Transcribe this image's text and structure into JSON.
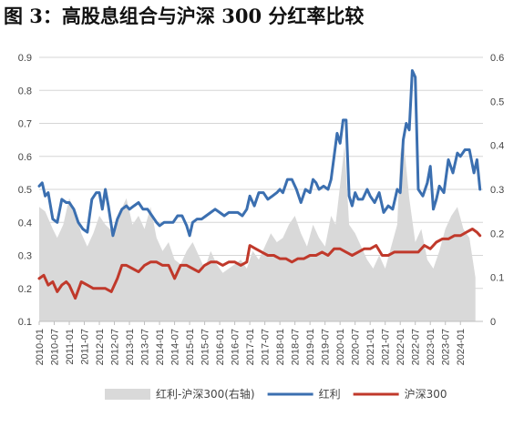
{
  "figure": {
    "title": "图 3：高股息组合与沪深 300 分红率比较"
  },
  "chart_data": {
    "type": "line",
    "title": "图 3：高股息组合与沪深 300 分红率比较",
    "x_labels": [
      "2010-01",
      "2010-07",
      "2011-01",
      "2011-07",
      "2012-01",
      "2012-07",
      "2013-01",
      "2013-07",
      "2014-01",
      "2014-07",
      "2015-01",
      "2015-07",
      "2016-01",
      "2016-07",
      "2017-01",
      "2017-07",
      "2018-01",
      "2018-07",
      "2019-01",
      "2019-07",
      "2020-01",
      "2020-07",
      "2021-01",
      "2021-07",
      "2022-01",
      "2022-07",
      "2023-01",
      "2023-07",
      "2024-01"
    ],
    "y_left": {
      "min": 0.1,
      "max": 0.9,
      "ticks": [
        "0.1",
        "0.2",
        "0.3",
        "0.4",
        "0.5",
        "0.6",
        "0.7",
        "0.8",
        "0.9"
      ]
    },
    "y_right": {
      "min": 0,
      "max": 0.6,
      "ticks": [
        "0",
        "0.1",
        "0.2",
        "0.3",
        "0.4",
        "0.5",
        "0.6"
      ]
    },
    "grid": true,
    "legend_position": "bottom",
    "series": [
      {
        "name": "红利-沪深300(右轴)",
        "kind": "area",
        "axis": "right",
        "color": "#d9d9d9",
        "x": [
          2010.0,
          2010.2,
          2010.45,
          2010.6,
          2010.8,
          2011.0,
          2011.2,
          2011.4,
          2011.6,
          2011.8,
          2012.0,
          2012.2,
          2012.5,
          2012.7,
          2012.9,
          2013.1,
          2013.3,
          2013.5,
          2013.7,
          2013.9,
          2014.1,
          2014.3,
          2014.5,
          2014.7,
          2014.9,
          2015.1,
          2015.3,
          2015.5,
          2015.7,
          2015.9,
          2016.1,
          2016.3,
          2016.5,
          2016.7,
          2016.9,
          2017.1,
          2017.3,
          2017.5,
          2017.7,
          2017.9,
          2018.1,
          2018.3,
          2018.5,
          2018.7,
          2018.9,
          2019.1,
          2019.3,
          2019.5,
          2019.7,
          2019.85,
          2020.0,
          2020.15,
          2020.3,
          2020.5,
          2020.7,
          2020.9,
          2021.1,
          2021.3,
          2021.5,
          2021.7,
          2021.9,
          2022.0,
          2022.1,
          2022.3,
          2022.5,
          2022.7,
          2022.9,
          2023.1,
          2023.3,
          2023.5,
          2023.7,
          2023.9,
          2024.1,
          2024.3,
          2024.5
        ],
        "values": [
          0.26,
          0.25,
          0.21,
          0.19,
          0.22,
          0.28,
          0.25,
          0.2,
          0.17,
          0.2,
          0.24,
          0.22,
          0.2,
          0.25,
          0.28,
          0.22,
          0.24,
          0.21,
          0.26,
          0.19,
          0.16,
          0.18,
          0.14,
          0.13,
          0.16,
          0.18,
          0.15,
          0.12,
          0.16,
          0.13,
          0.11,
          0.12,
          0.13,
          0.14,
          0.12,
          0.16,
          0.14,
          0.17,
          0.2,
          0.18,
          0.19,
          0.22,
          0.24,
          0.2,
          0.17,
          0.22,
          0.19,
          0.17,
          0.24,
          0.22,
          0.31,
          0.4,
          0.22,
          0.2,
          0.17,
          0.14,
          0.12,
          0.15,
          0.12,
          0.17,
          0.22,
          0.38,
          0.42,
          0.28,
          0.18,
          0.21,
          0.14,
          0.12,
          0.16,
          0.21,
          0.24,
          0.26,
          0.21,
          0.19,
          0.1
        ]
      },
      {
        "name": "红利",
        "kind": "line",
        "axis": "left",
        "color": "#3b6fb0",
        "x": [
          2010.0,
          2010.1,
          2010.2,
          2010.3,
          2010.45,
          2010.6,
          2010.75,
          2010.9,
          2011.0,
          2011.15,
          2011.3,
          2011.45,
          2011.6,
          2011.75,
          2011.9,
          2012.0,
          2012.1,
          2012.2,
          2012.3,
          2012.45,
          2012.6,
          2012.75,
          2012.9,
          2013.0,
          2013.15,
          2013.3,
          2013.45,
          2013.6,
          2013.75,
          2013.9,
          2014.0,
          2014.15,
          2014.3,
          2014.45,
          2014.6,
          2014.75,
          2014.9,
          2015.0,
          2015.1,
          2015.25,
          2015.4,
          2015.55,
          2015.7,
          2015.85,
          2016.0,
          2016.15,
          2016.3,
          2016.45,
          2016.6,
          2016.75,
          2016.9,
          2017.0,
          2017.15,
          2017.3,
          2017.45,
          2017.6,
          2017.75,
          2017.9,
          2018.0,
          2018.1,
          2018.25,
          2018.4,
          2018.55,
          2018.7,
          2018.85,
          2019.0,
          2019.1,
          2019.2,
          2019.3,
          2019.45,
          2019.6,
          2019.7,
          2019.8,
          2019.9,
          2020.0,
          2020.1,
          2020.2,
          2020.3,
          2020.4,
          2020.5,
          2020.6,
          2020.75,
          2020.9,
          2021.0,
          2021.15,
          2021.3,
          2021.45,
          2021.6,
          2021.75,
          2021.9,
          2022.0,
          2022.1,
          2022.2,
          2022.3,
          2022.4,
          2022.5,
          2022.6,
          2022.75,
          2022.9,
          2023.0,
          2023.1,
          2023.2,
          2023.3,
          2023.45,
          2023.6,
          2023.75,
          2023.9,
          2024.0,
          2024.15,
          2024.3,
          2024.45,
          2024.55,
          2024.65
        ],
        "values": [
          0.51,
          0.52,
          0.48,
          0.49,
          0.41,
          0.4,
          0.47,
          0.46,
          0.46,
          0.44,
          0.4,
          0.38,
          0.37,
          0.47,
          0.49,
          0.49,
          0.44,
          0.5,
          0.45,
          0.36,
          0.41,
          0.44,
          0.45,
          0.44,
          0.45,
          0.46,
          0.44,
          0.44,
          0.42,
          0.4,
          0.39,
          0.4,
          0.4,
          0.4,
          0.42,
          0.42,
          0.39,
          0.36,
          0.4,
          0.41,
          0.41,
          0.42,
          0.43,
          0.44,
          0.43,
          0.42,
          0.43,
          0.43,
          0.43,
          0.42,
          0.44,
          0.48,
          0.45,
          0.49,
          0.49,
          0.47,
          0.48,
          0.49,
          0.5,
          0.49,
          0.53,
          0.53,
          0.5,
          0.46,
          0.5,
          0.49,
          0.53,
          0.52,
          0.5,
          0.51,
          0.5,
          0.53,
          0.6,
          0.67,
          0.64,
          0.71,
          0.71,
          0.48,
          0.45,
          0.49,
          0.47,
          0.47,
          0.5,
          0.48,
          0.46,
          0.49,
          0.43,
          0.45,
          0.44,
          0.5,
          0.49,
          0.65,
          0.7,
          0.68,
          0.86,
          0.84,
          0.5,
          0.48,
          0.52,
          0.57,
          0.44,
          0.47,
          0.51,
          0.49,
          0.59,
          0.55,
          0.61,
          0.6,
          0.62,
          0.62,
          0.55,
          0.59,
          0.5
        ]
      },
      {
        "name": "沪深300",
        "kind": "line",
        "axis": "left",
        "color": "#c0392b",
        "x": [
          2010.0,
          2010.15,
          2010.3,
          2010.45,
          2010.6,
          2010.75,
          2010.9,
          2011.0,
          2011.2,
          2011.4,
          2011.6,
          2011.8,
          2012.0,
          2012.2,
          2012.4,
          2012.6,
          2012.75,
          2012.9,
          2013.1,
          2013.3,
          2013.5,
          2013.7,
          2013.9,
          2014.1,
          2014.3,
          2014.5,
          2014.7,
          2014.9,
          2015.1,
          2015.3,
          2015.5,
          2015.7,
          2015.9,
          2016.1,
          2016.3,
          2016.5,
          2016.7,
          2016.9,
          2017.0,
          2017.2,
          2017.4,
          2017.6,
          2017.8,
          2018.0,
          2018.2,
          2018.4,
          2018.6,
          2018.8,
          2019.0,
          2019.2,
          2019.4,
          2019.6,
          2019.8,
          2020.0,
          2020.2,
          2020.4,
          2020.6,
          2020.8,
          2021.0,
          2021.2,
          2021.4,
          2021.6,
          2021.8,
          2022.0,
          2022.2,
          2022.4,
          2022.6,
          2022.8,
          2023.0,
          2023.2,
          2023.4,
          2023.6,
          2023.8,
          2024.0,
          2024.2,
          2024.4,
          2024.55,
          2024.65
        ],
        "values": [
          0.23,
          0.24,
          0.21,
          0.22,
          0.19,
          0.21,
          0.22,
          0.21,
          0.17,
          0.22,
          0.21,
          0.2,
          0.2,
          0.2,
          0.19,
          0.23,
          0.27,
          0.27,
          0.26,
          0.25,
          0.27,
          0.28,
          0.28,
          0.27,
          0.27,
          0.23,
          0.27,
          0.27,
          0.26,
          0.25,
          0.27,
          0.28,
          0.28,
          0.27,
          0.28,
          0.28,
          0.27,
          0.28,
          0.33,
          0.32,
          0.31,
          0.3,
          0.3,
          0.29,
          0.29,
          0.28,
          0.29,
          0.29,
          0.3,
          0.3,
          0.31,
          0.3,
          0.32,
          0.32,
          0.31,
          0.3,
          0.31,
          0.32,
          0.32,
          0.33,
          0.3,
          0.3,
          0.31,
          0.31,
          0.31,
          0.31,
          0.31,
          0.33,
          0.32,
          0.34,
          0.35,
          0.35,
          0.36,
          0.36,
          0.37,
          0.38,
          0.37,
          0.36
        ]
      }
    ]
  }
}
